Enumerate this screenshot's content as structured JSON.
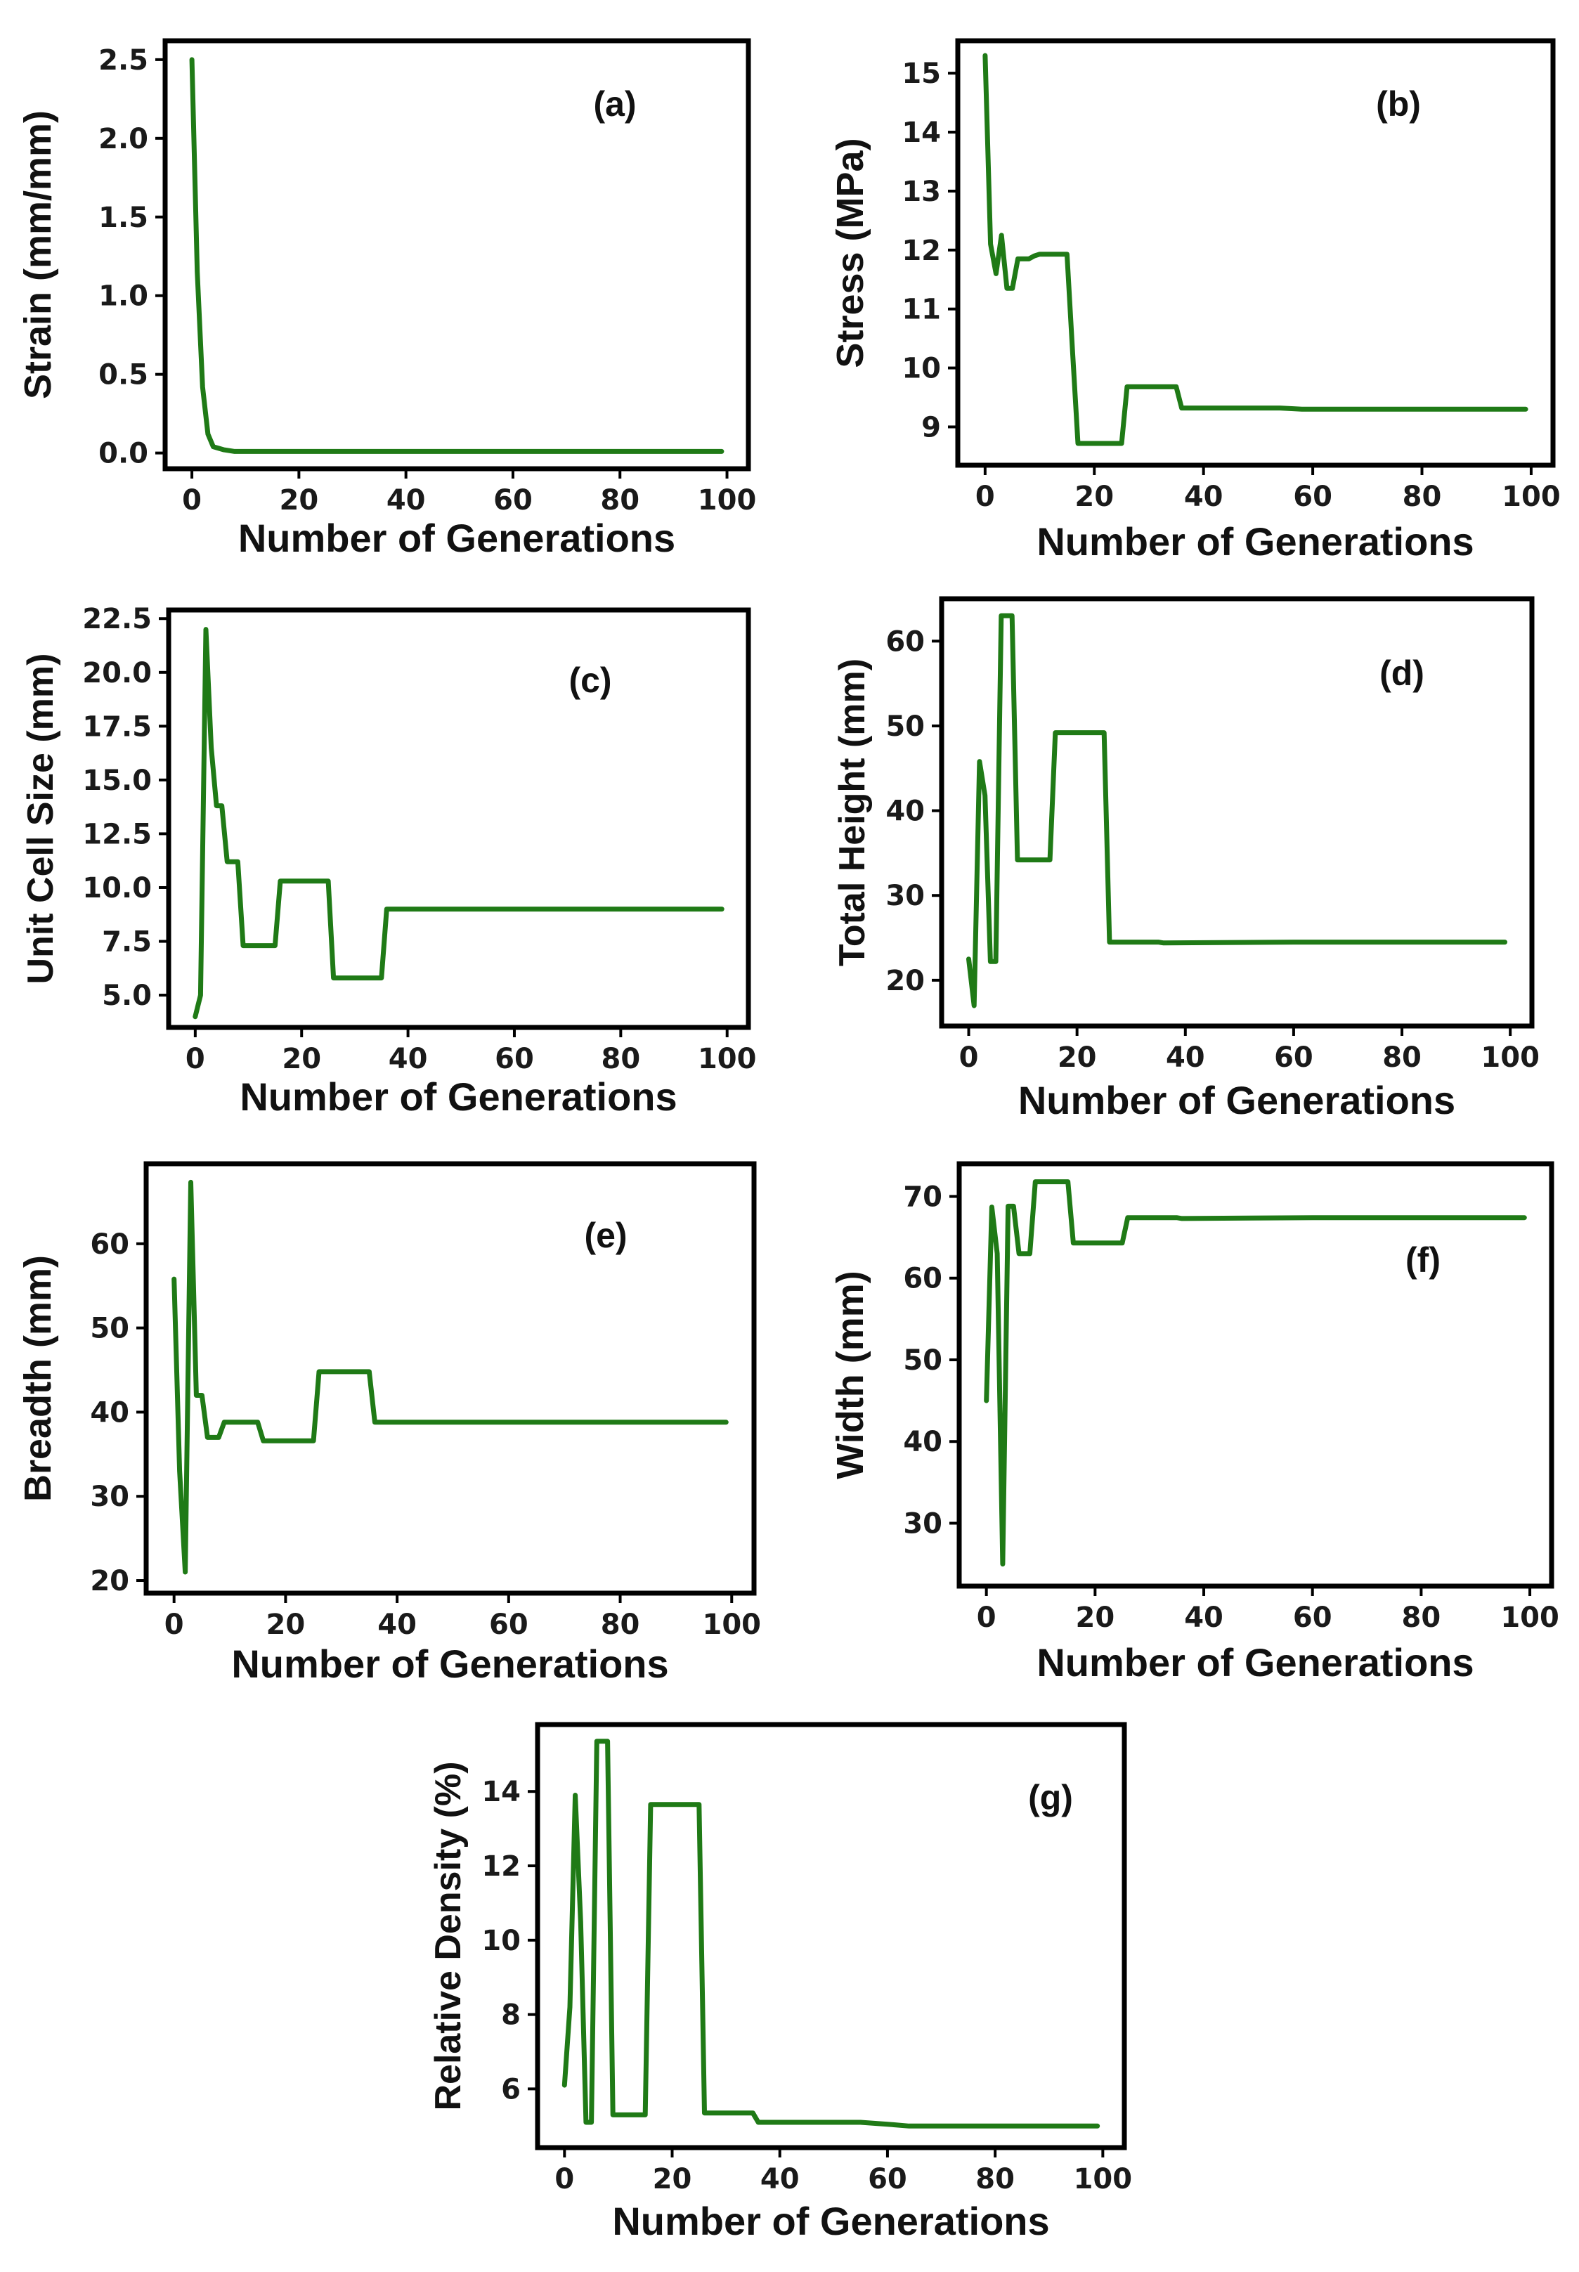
{
  "colors": {
    "line": "#1f7a16",
    "frame": "#000000"
  },
  "chart_data": [
    {
      "id": "a",
      "type": "line",
      "panel_label": "(a)",
      "xlabel": "Number of Generations",
      "ylabel": "Strain (mm/mm)",
      "xlim": [
        -5,
        104
      ],
      "ylim": [
        -0.1,
        2.62
      ],
      "xticks": [
        0,
        20,
        40,
        60,
        80,
        100
      ],
      "yticks": [
        0.0,
        0.5,
        1.0,
        1.5,
        2.0,
        2.5
      ],
      "ytick_labels": [
        "0.0",
        "0.5",
        "1.0",
        "1.5",
        "2.0",
        "2.5"
      ],
      "series": [
        {
          "name": "Strain",
          "x": [
            0,
            1,
            2,
            3,
            4,
            5,
            6,
            8,
            10,
            20,
            40,
            60,
            80,
            99
          ],
          "y": [
            2.5,
            1.15,
            0.42,
            0.12,
            0.04,
            0.03,
            0.02,
            0.01,
            0.01,
            0.01,
            0.01,
            0.01,
            0.01,
            0.01
          ]
        }
      ]
    },
    {
      "id": "b",
      "type": "line",
      "panel_label": "(b)",
      "xlabel": "Number of Generations",
      "ylabel": "Stress (MPa)",
      "xlim": [
        -5,
        104
      ],
      "ylim": [
        8.35,
        15.55
      ],
      "xticks": [
        0,
        20,
        40,
        60,
        80,
        100
      ],
      "yticks": [
        9,
        10,
        11,
        12,
        13,
        14,
        15
      ],
      "ytick_labels": [
        "9",
        "10",
        "11",
        "12",
        "13",
        "14",
        "15"
      ],
      "series": [
        {
          "name": "Stress",
          "x": [
            0,
            1,
            2,
            3,
            4,
            5,
            6,
            7,
            8,
            9,
            10,
            11,
            15,
            16,
            17,
            24,
            25,
            26,
            34,
            35,
            36,
            54,
            58,
            99
          ],
          "y": [
            15.3,
            12.1,
            11.6,
            12.25,
            11.35,
            11.35,
            11.85,
            11.85,
            11.85,
            11.9,
            11.93,
            11.93,
            11.93,
            10.3,
            8.72,
            8.72,
            8.72,
            9.68,
            9.68,
            9.68,
            9.32,
            9.32,
            9.3,
            9.3
          ]
        }
      ]
    },
    {
      "id": "c",
      "type": "line",
      "panel_label": "(c)",
      "xlabel": "Number of Generations",
      "ylabel": "Unit Cell Size (mm)",
      "xlim": [
        -5,
        104
      ],
      "ylim": [
        3.5,
        22.9
      ],
      "xticks": [
        0,
        20,
        40,
        60,
        80,
        100
      ],
      "yticks": [
        5.0,
        7.5,
        10.0,
        12.5,
        15.0,
        17.5,
        20.0,
        22.5
      ],
      "ytick_labels": [
        "5.0",
        "7.5",
        "10.0",
        "12.5",
        "15.0",
        "17.5",
        "20.0",
        "22.5"
      ],
      "series": [
        {
          "name": "Unit Cell Size",
          "x": [
            0,
            1,
            2,
            3,
            4,
            5,
            6,
            7,
            8,
            9,
            15,
            16,
            25,
            26,
            35,
            36,
            60,
            99
          ],
          "y": [
            4.0,
            5.0,
            22.0,
            16.5,
            13.8,
            13.8,
            11.2,
            11.2,
            11.2,
            7.3,
            7.3,
            10.3,
            10.3,
            5.8,
            5.8,
            9.0,
            9.0,
            9.0
          ]
        }
      ]
    },
    {
      "id": "d",
      "type": "line",
      "panel_label": "(d)",
      "xlabel": "Number of Generations",
      "ylabel": "Total Height (mm)",
      "xlim": [
        -5,
        104
      ],
      "ylim": [
        14.6,
        65.0
      ],
      "xticks": [
        0,
        20,
        40,
        60,
        80,
        100
      ],
      "yticks": [
        20,
        30,
        40,
        50,
        60
      ],
      "ytick_labels": [
        "20",
        "30",
        "40",
        "50",
        "60"
      ],
      "series": [
        {
          "name": "Total Height",
          "x": [
            0,
            1,
            2,
            3,
            4,
            5,
            6,
            7,
            8,
            9,
            15,
            16,
            25,
            26,
            35,
            36,
            60,
            99
          ],
          "y": [
            22.5,
            17.0,
            45.8,
            41.8,
            22.2,
            22.2,
            63.0,
            63.0,
            63.0,
            34.2,
            34.2,
            49.2,
            49.2,
            24.5,
            24.5,
            24.4,
            24.5,
            24.5
          ]
        }
      ]
    },
    {
      "id": "e",
      "type": "line",
      "panel_label": "(e)",
      "xlabel": "Number of Generations",
      "ylabel": "Breadth (mm)",
      "xlim": [
        -5,
        104
      ],
      "ylim": [
        18.5,
        69.5
      ],
      "xticks": [
        0,
        20,
        40,
        60,
        80,
        100
      ],
      "yticks": [
        20,
        30,
        40,
        50,
        60
      ],
      "ytick_labels": [
        "20",
        "30",
        "40",
        "50",
        "60"
      ],
      "series": [
        {
          "name": "Breadth",
          "x": [
            0,
            1,
            2,
            3,
            4,
            5,
            6,
            7,
            8,
            9,
            15,
            16,
            25,
            26,
            35,
            36,
            60,
            99
          ],
          "y": [
            55.8,
            33.0,
            21.0,
            67.3,
            42.0,
            42.0,
            37.0,
            37.0,
            37.0,
            38.8,
            38.8,
            36.6,
            36.6,
            44.8,
            44.8,
            38.8,
            38.8,
            38.8
          ]
        }
      ]
    },
    {
      "id": "f",
      "type": "line",
      "panel_label": "(f)",
      "xlabel": "Number of Generations",
      "ylabel": "Width (mm)",
      "xlim": [
        -5,
        104
      ],
      "ylim": [
        22.3,
        74.0
      ],
      "xticks": [
        0,
        20,
        40,
        60,
        80,
        100
      ],
      "yticks": [
        30,
        40,
        50,
        60,
        70
      ],
      "ytick_labels": [
        "30",
        "40",
        "50",
        "60",
        "70"
      ],
      "series": [
        {
          "name": "Width",
          "x": [
            0,
            1,
            2,
            3,
            4,
            5,
            6,
            7,
            8,
            9,
            15,
            16,
            25,
            26,
            35,
            36,
            60,
            99
          ],
          "y": [
            45.0,
            68.7,
            63.0,
            25.0,
            68.8,
            68.8,
            63.0,
            63.0,
            63.0,
            71.8,
            71.8,
            64.3,
            64.3,
            67.4,
            67.4,
            67.3,
            67.4,
            67.4
          ]
        }
      ]
    },
    {
      "id": "g",
      "type": "line",
      "panel_label": "(g)",
      "xlabel": "Number of Generations",
      "ylabel": "Relative Density (%)",
      "xlim": [
        -5,
        104
      ],
      "ylim": [
        4.42,
        15.8
      ],
      "xticks": [
        0,
        20,
        40,
        60,
        80,
        100
      ],
      "yticks": [
        6,
        8,
        10,
        12,
        14
      ],
      "ytick_labels": [
        "6",
        "8",
        "10",
        "12",
        "14"
      ],
      "series": [
        {
          "name": "Relative Density",
          "x": [
            0,
            1,
            2,
            3,
            4,
            5,
            6,
            7,
            8,
            9,
            15,
            16,
            25,
            26,
            35,
            36,
            55,
            60,
            64,
            99
          ],
          "y": [
            6.1,
            8.2,
            13.9,
            10.5,
            5.1,
            5.1,
            15.35,
            15.35,
            15.35,
            5.3,
            5.3,
            13.65,
            13.65,
            5.35,
            5.35,
            5.1,
            5.1,
            5.05,
            5.0,
            5.0
          ]
        }
      ]
    }
  ]
}
